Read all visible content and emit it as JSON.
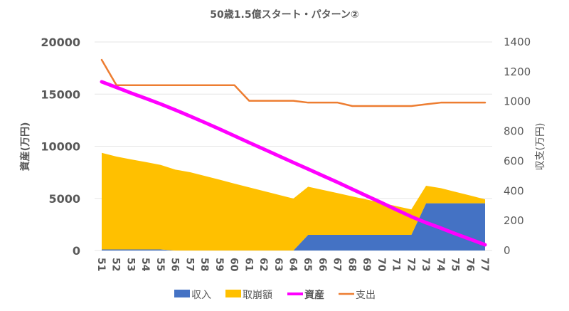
{
  "chart_data": {
    "type": "area+line",
    "title": "50歳1.5億スタート・パターン②",
    "xlabel": "",
    "ylabel_left": "資産(万円)",
    "ylabel_right": "収支(万円)",
    "categories": [
      "51",
      "52",
      "53",
      "54",
      "55",
      "56",
      "57",
      "58",
      "59",
      "60",
      "61",
      "62",
      "63",
      "64",
      "65",
      "66",
      "67",
      "68",
      "69",
      "70",
      "71",
      "72",
      "73",
      "74",
      "75",
      "76",
      "77"
    ],
    "y_left": {
      "min": 0,
      "max": 20000,
      "ticks": [
        "0",
        "5000",
        "10000",
        "15000",
        "20000"
      ]
    },
    "y_right": {
      "min": 0,
      "max": 1400,
      "ticks": [
        "0",
        "200",
        "400",
        "600",
        "800",
        "1000",
        "1200",
        "1400"
      ]
    },
    "grid": true,
    "legend_position": "bottom",
    "series": [
      {
        "name": "収入",
        "kind": "stacked-area",
        "axis": "left",
        "color": "#4472C4",
        "values": [
          100,
          100,
          100,
          100,
          100,
          0,
          0,
          0,
          0,
          0,
          0,
          0,
          0,
          0,
          1500,
          1500,
          1500,
          1500,
          1500,
          1500,
          1500,
          1500,
          4530,
          4530,
          4530,
          4530,
          4530
        ]
      },
      {
        "name": "取崩額",
        "kind": "stacked-area",
        "axis": "left",
        "color": "#FFC000",
        "values": [
          9270,
          8910,
          8640,
          8380,
          8110,
          7760,
          7510,
          7150,
          6790,
          6420,
          6060,
          5700,
          5340,
          4980,
          4620,
          4310,
          4000,
          3690,
          3380,
          3070,
          2750,
          2440,
          1680,
          1450,
          1090,
          740,
          380
        ]
      },
      {
        "name": "資産",
        "kind": "line",
        "axis": "left",
        "color": "#FF00FF",
        "bold_legend": true,
        "values": [
          16180,
          15650,
          15100,
          14580,
          14050,
          13480,
          12880,
          12270,
          11640,
          11000,
          10350,
          9720,
          9080,
          8440,
          7810,
          7170,
          6540,
          5880,
          5220,
          4570,
          3900,
          3250,
          2670,
          2150,
          1600,
          1080,
          550
        ]
      },
      {
        "name": "支出",
        "kind": "line",
        "axis": "right",
        "color": "#ED7D31",
        "values": [
          1280,
          1110,
          1110,
          1110,
          1110,
          1110,
          1110,
          1110,
          1110,
          1110,
          1005,
          1005,
          1005,
          1005,
          993,
          993,
          993,
          970,
          970,
          970,
          970,
          970,
          982,
          993,
          993,
          993,
          993
        ]
      }
    ]
  }
}
